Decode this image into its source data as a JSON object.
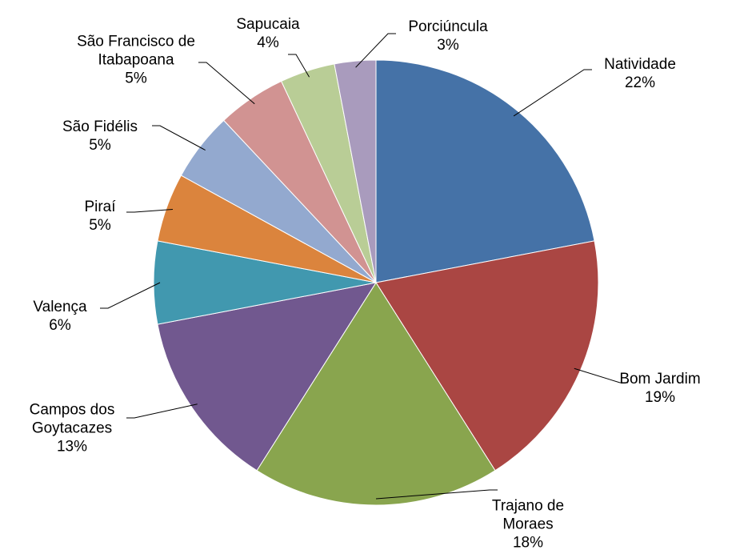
{
  "chart_data": {
    "type": "pie",
    "categories": [
      "Natividade",
      "Bom Jardim",
      "Trajano de Moraes",
      "Campos dos Goytacazes",
      "Valença",
      "Piraí",
      "São Fidélis",
      "São Francisco de Itabapoana",
      "Sapucaia",
      "Porciúncula"
    ],
    "values": [
      22,
      19,
      18,
      13,
      6,
      5,
      5,
      5,
      4,
      3
    ],
    "value_labels": [
      "22%",
      "19%",
      "18%",
      "13%",
      "6%",
      "5%",
      "5%",
      "5%",
      "4%",
      "3%"
    ],
    "colors": [
      "#4572a7",
      "#aa4643",
      "#89a54e",
      "#71588f",
      "#4198af",
      "#db843d",
      "#93a9cf",
      "#d19392",
      "#b9cd96",
      "#a99bbd"
    ]
  }
}
